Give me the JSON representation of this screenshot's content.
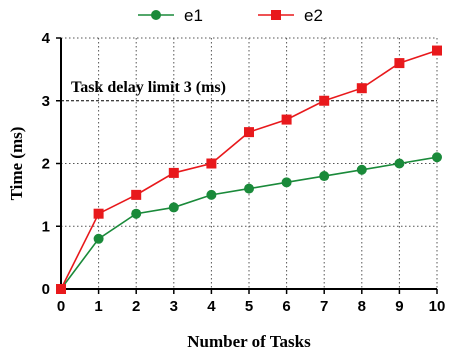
{
  "chart_data": {
    "type": "line",
    "xlabel": "Number of Tasks",
    "ylabel": "Time (ms)",
    "x": [
      0,
      1,
      2,
      3,
      4,
      5,
      6,
      7,
      8,
      9,
      10
    ],
    "xlim": [
      0,
      10
    ],
    "ylim": [
      0,
      4
    ],
    "xticks": [
      "0",
      "1",
      "2",
      "3",
      "4",
      "5",
      "6",
      "7",
      "8",
      "9",
      "10"
    ],
    "yticks": [
      "0",
      "1",
      "2",
      "3",
      "4"
    ],
    "grid": true,
    "legend_position": "top",
    "series": [
      {
        "name": "e1",
        "color": "#1a8a3a",
        "marker": "circle",
        "values": [
          0,
          0.8,
          1.2,
          1.3,
          1.5,
          1.6,
          1.7,
          1.8,
          1.9,
          2.0,
          2.1
        ]
      },
      {
        "name": "e2",
        "color": "#e8191c",
        "marker": "square",
        "values": [
          0,
          1.2,
          1.5,
          1.85,
          2.0,
          2.5,
          2.7,
          3.0,
          3.2,
          3.6,
          3.8
        ]
      }
    ],
    "reference_line": {
      "y": 3,
      "label": "Task delay limit 3 (ms)",
      "style": "dashed"
    }
  }
}
